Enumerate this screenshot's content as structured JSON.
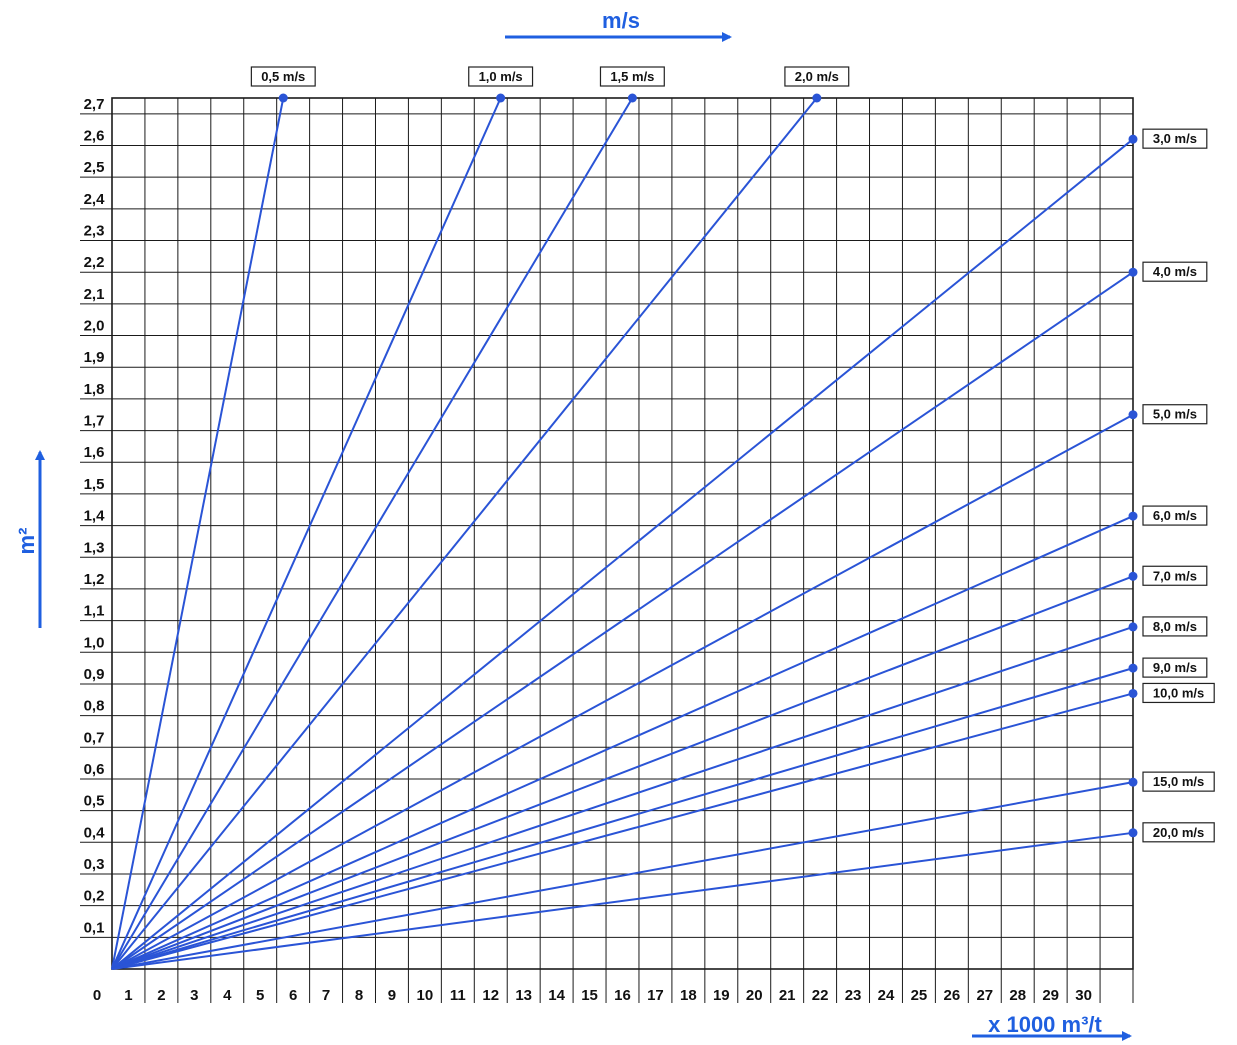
{
  "chart_data": {
    "type": "line",
    "title": "m/s",
    "xlabel": "x 1000 m³/t",
    "ylabel": "m²",
    "xlim": [
      0,
      31
    ],
    "ylim": [
      0,
      2.75
    ],
    "grid": true,
    "origin_label": "0",
    "x_ticks": [
      "1",
      "2",
      "3",
      "4",
      "5",
      "6",
      "7",
      "8",
      "9",
      "10",
      "11",
      "12",
      "13",
      "14",
      "15",
      "16",
      "17",
      "18",
      "19",
      "20",
      "21",
      "22",
      "23",
      "24",
      "25",
      "26",
      "27",
      "28",
      "29",
      "30"
    ],
    "y_ticks": [
      "0,1",
      "0,2",
      "0,3",
      "0,4",
      "0,5",
      "0,6",
      "0,7",
      "0,8",
      "0,9",
      "1,0",
      "1,1",
      "1,2",
      "1,3",
      "1,4",
      "1,5",
      "1,6",
      "1,7",
      "1,8",
      "1,9",
      "2,0",
      "2,1",
      "2,2",
      "2,3",
      "2,4",
      "2,5",
      "2,6",
      "2,7"
    ],
    "series": [
      {
        "name": "0,5 m/s",
        "velocity": 0.5,
        "x": [
          0,
          5.2
        ],
        "y": [
          0,
          2.75
        ]
      },
      {
        "name": "1,0 m/s",
        "velocity": 1.0,
        "x": [
          0,
          11.8
        ],
        "y": [
          0,
          2.75
        ]
      },
      {
        "name": "1,5 m/s",
        "velocity": 1.5,
        "x": [
          0,
          15.8
        ],
        "y": [
          0,
          2.75
        ]
      },
      {
        "name": "2,0 m/s",
        "velocity": 2.0,
        "x": [
          0,
          21.4
        ],
        "y": [
          0,
          2.75
        ]
      },
      {
        "name": "3,0 m/s",
        "velocity": 3.0,
        "x": [
          0,
          31
        ],
        "y": [
          0,
          2.62
        ]
      },
      {
        "name": "4,0 m/s",
        "velocity": 4.0,
        "x": [
          0,
          31
        ],
        "y": [
          0,
          2.2
        ]
      },
      {
        "name": "5,0 m/s",
        "velocity": 5.0,
        "x": [
          0,
          31
        ],
        "y": [
          0,
          1.75
        ]
      },
      {
        "name": "6,0 m/s",
        "velocity": 6.0,
        "x": [
          0,
          31
        ],
        "y": [
          0,
          1.43
        ]
      },
      {
        "name": "7,0 m/s",
        "velocity": 7.0,
        "x": [
          0,
          31
        ],
        "y": [
          0,
          1.24
        ]
      },
      {
        "name": "8,0 m/s",
        "velocity": 8.0,
        "x": [
          0,
          31
        ],
        "y": [
          0,
          1.08
        ]
      },
      {
        "name": "9,0 m/s",
        "velocity": 9.0,
        "x": [
          0,
          31
        ],
        "y": [
          0,
          0.95
        ]
      },
      {
        "name": "10,0 m/s",
        "velocity": 10.0,
        "x": [
          0,
          31
        ],
        "y": [
          0,
          0.87
        ]
      },
      {
        "name": "15,0 m/s",
        "velocity": 15.0,
        "x": [
          0,
          31
        ],
        "y": [
          0,
          0.59
        ]
      },
      {
        "name": "20,0 m/s",
        "velocity": 20.0,
        "x": [
          0,
          31
        ],
        "y": [
          0,
          0.43
        ]
      }
    ],
    "colors": {
      "series": "#2a54d6",
      "grid": "#1a1a1a",
      "accent": "#1f5fe0"
    }
  }
}
